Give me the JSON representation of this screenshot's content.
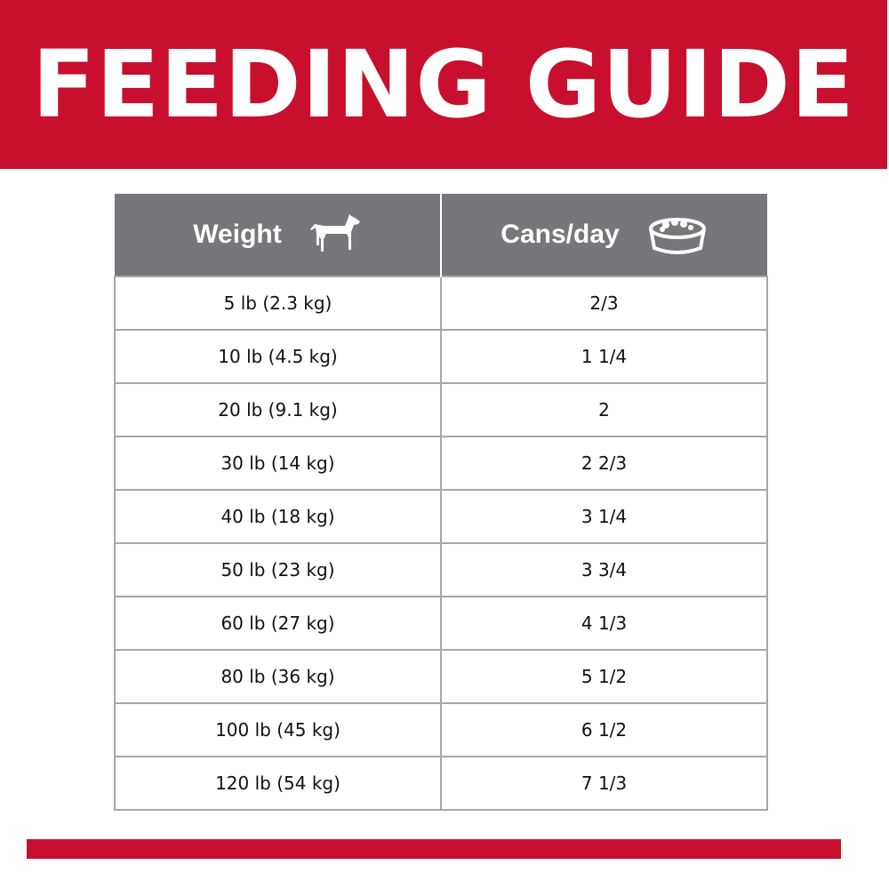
{
  "header": {
    "title": "FEEDING GUIDE"
  },
  "table": {
    "columns": [
      "Weight",
      "Cans/day"
    ],
    "rows": [
      [
        "5 lb (2.3 kg)",
        "2/3"
      ],
      [
        "10 lb (4.5 kg)",
        "1 1/4"
      ],
      [
        "20 lb (9.1 kg)",
        "2"
      ],
      [
        "30 lb (14 kg)",
        "2 2/3"
      ],
      [
        "40 lb (18 kg)",
        "3 1/4"
      ],
      [
        "50 lb (23 kg)",
        "3 3/4"
      ],
      [
        "60 lb (27 kg)",
        "4 1/3"
      ],
      [
        "80 lb (36 kg)",
        "5 1/2"
      ],
      [
        "100 lb (45 kg)",
        "6 1/2"
      ],
      [
        "120 lb (54 kg)",
        "7 1/3"
      ]
    ]
  }
}
